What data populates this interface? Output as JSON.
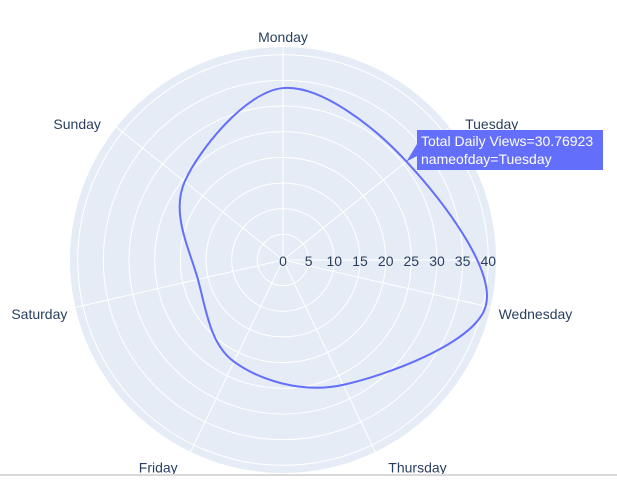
{
  "chart_data": {
    "type": "line",
    "subtype": "polar",
    "theta_categories": [
      "Monday",
      "Tuesday",
      "Wednesday",
      "Thursday",
      "Friday",
      "Saturday",
      "Sunday"
    ],
    "series": [
      {
        "r": [
          33.5,
          30.76923,
          40.5,
          27,
          22,
          17,
          24.5
        ],
        "color": "#636efa",
        "line_shape": "spline"
      }
    ],
    "radial_ticks": [
      "0",
      "5",
      "10",
      "15",
      "20",
      "25",
      "30",
      "35",
      "40"
    ],
    "radial_range": [
      0,
      41.5
    ],
    "rotation": "clockwise, Monday at top",
    "grid": true,
    "colors": {
      "polar_bg": "#e5ecf6",
      "grid": "#ffffff",
      "text": "#2a3f5f",
      "line": "#636efa"
    },
    "hover": {
      "line1": "Total Daily Views=30.76923",
      "line2": "nameofday=Tuesday"
    }
  }
}
